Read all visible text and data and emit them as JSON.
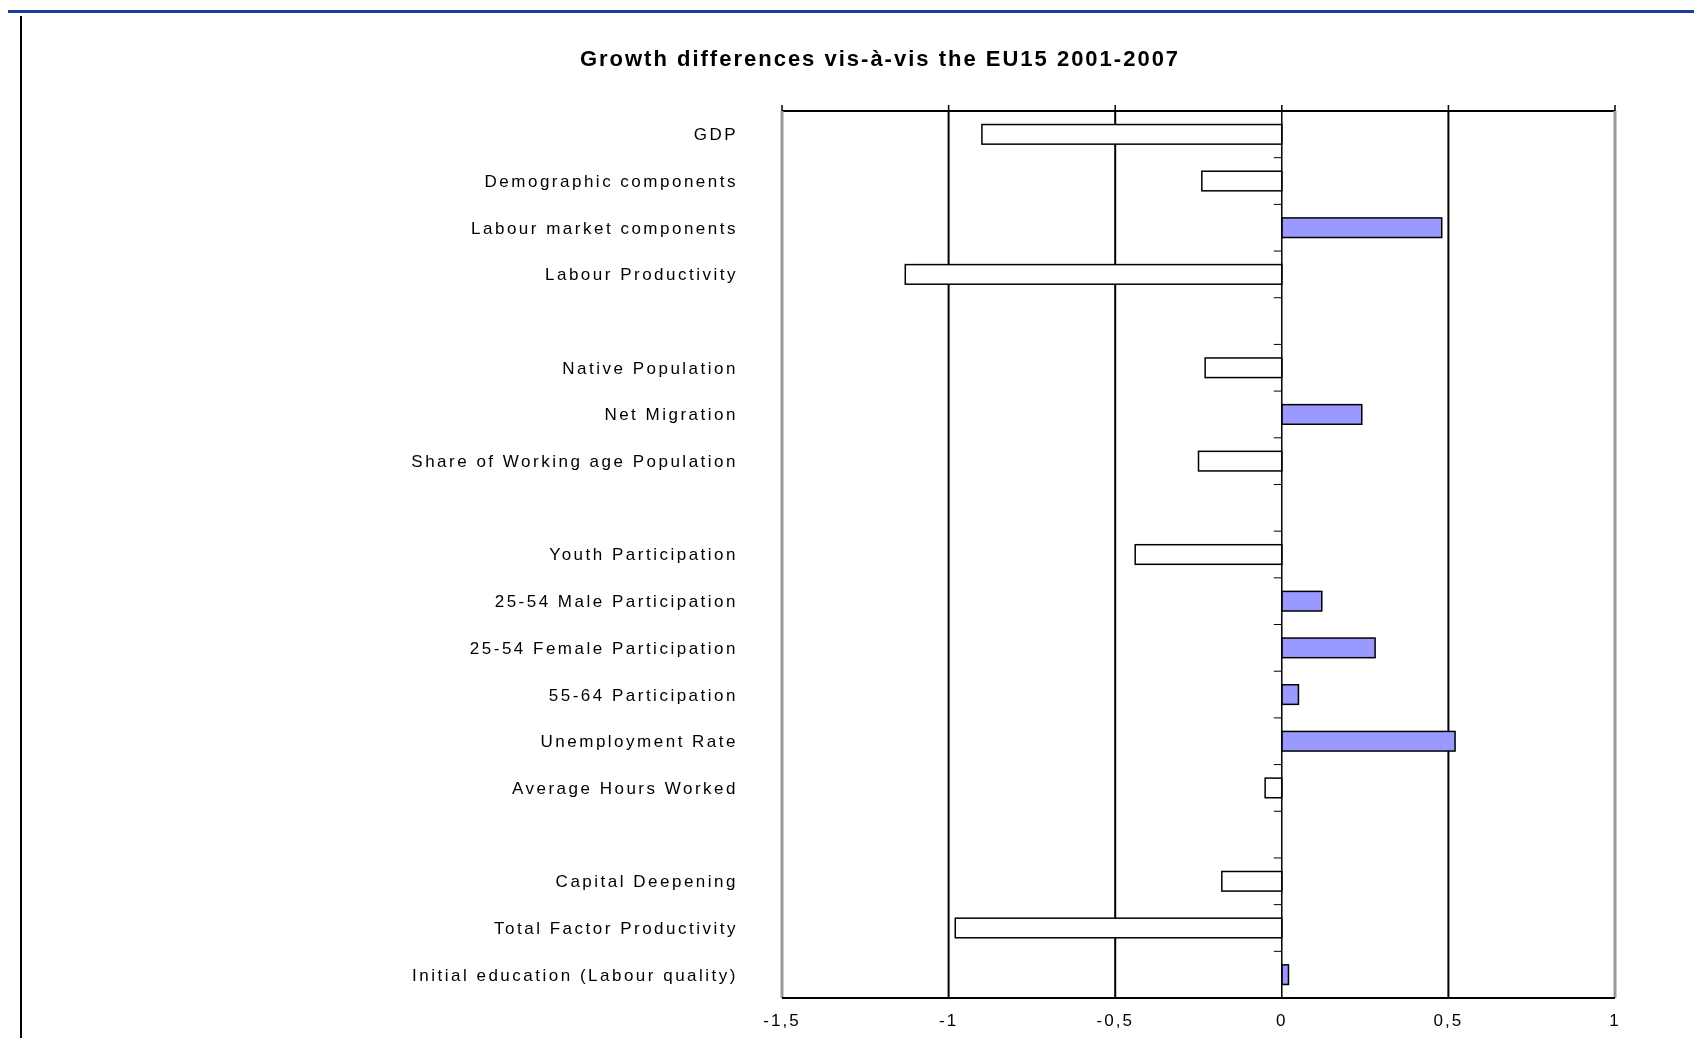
{
  "chart_data": {
    "type": "bar",
    "orientation": "horizontal",
    "title": "Growth differences vis-à-vis the EU15  2001-2007",
    "categories": [
      "GDP",
      "Demographic components",
      "Labour market  components",
      "Labour Productivity",
      null,
      "Native Population",
      "Net Migration",
      "Share of Working age Population",
      null,
      "Youth Participation",
      "25-54  Male Participation",
      "25-54  Female Participation",
      "55-64  Participation",
      "Unemployment Rate",
      "Average Hours  Worked",
      null,
      "Capital Deepening",
      "Total Factor Productivity",
      "Initial education (Labour  quality)"
    ],
    "values": [
      -0.9,
      -0.24,
      0.48,
      -1.13,
      null,
      -0.23,
      0.24,
      -0.25,
      null,
      -0.44,
      0.12,
      0.28,
      0.05,
      0.52,
      -0.05,
      null,
      -0.18,
      -0.98,
      0.02
    ],
    "colors": [
      "#ffffff",
      "#ffffff",
      "#9999ff",
      "#ffffff",
      null,
      "#ffffff",
      "#9999ff",
      "#ffffff",
      null,
      "#ffffff",
      "#9999ff",
      "#9999ff",
      "#9999ff",
      "#9999ff",
      "#ffffff",
      null,
      "#ffffff",
      "#ffffff",
      "#9999ff"
    ],
    "xlim": [
      -1.5,
      1
    ],
    "xticks": [
      {
        "value": -1.5,
        "label": "-1,5"
      },
      -1,
      {
        "value": -0.5,
        "label": "-0,5"
      },
      0,
      {
        "value": 0.5,
        "label": "0,5"
      },
      1
    ],
    "grid": "x"
  }
}
